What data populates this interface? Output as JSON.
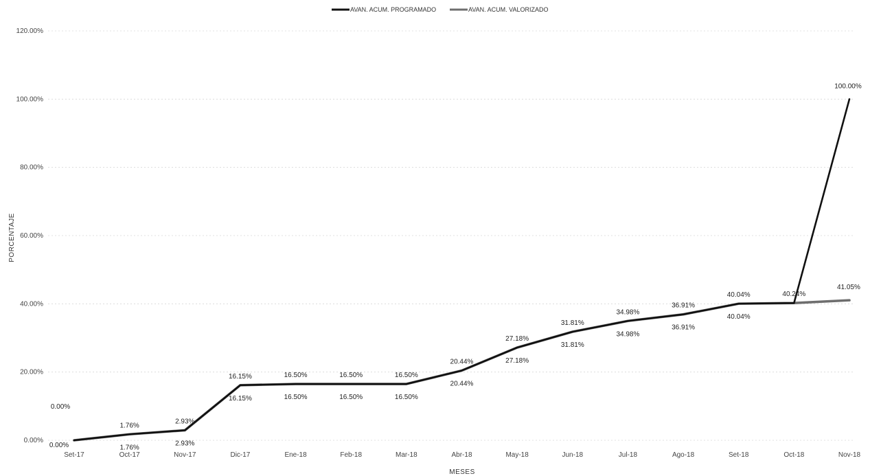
{
  "chart_data": {
    "type": "line",
    "title": "",
    "xlabel": "MESES",
    "ylabel": "PORCENTAJE",
    "categories": [
      "Set-17",
      "Oct-17",
      "Nov-17",
      "Dic-17",
      "Ene-18",
      "Feb-18",
      "Mar-18",
      "Abr-18",
      "May-18",
      "Jun-18",
      "Jul-18",
      "Ago-18",
      "Set-18",
      "Oct-18",
      "Nov-18"
    ],
    "ylim": [
      0,
      120
    ],
    "yticks": [
      "0.00%",
      "20.00%",
      "40.00%",
      "60.00%",
      "80.00%",
      "100.00%",
      "120.00%"
    ],
    "grid": true,
    "legend_position": "top",
    "series": [
      {
        "name": "AVAN. ACUM. PROGRAMADO",
        "color": "#111111",
        "values": [
          0.0,
          1.76,
          2.93,
          16.15,
          16.5,
          16.5,
          16.5,
          20.44,
          27.18,
          31.81,
          34.98,
          36.91,
          40.04,
          40.24,
          100.0
        ],
        "labels": [
          "0.00%",
          "1.76%",
          "2.93%",
          "16.15%",
          "16.50%",
          "16.50%",
          "16.50%",
          "20.44%",
          "27.18%",
          "31.81%",
          "34.98%",
          "36.91%",
          "40.04%",
          "40.24%",
          "100.00%"
        ]
      },
      {
        "name": "AVAN. ACUM. VALORIZADO",
        "color": "#6e6e6e",
        "values": [
          0.0,
          1.76,
          2.93,
          16.15,
          16.5,
          16.5,
          16.5,
          20.44,
          27.18,
          31.81,
          34.98,
          36.91,
          40.04,
          40.24,
          41.05
        ],
        "labels": [
          "0.00%",
          "1.76%",
          "2.93%",
          "16.15%",
          "16.50%",
          "16.50%",
          "16.50%",
          "20.44%",
          "27.18%",
          "31.81%",
          "34.98%",
          "36.91%",
          "40.04%",
          "",
          "41.05%"
        ]
      }
    ]
  }
}
